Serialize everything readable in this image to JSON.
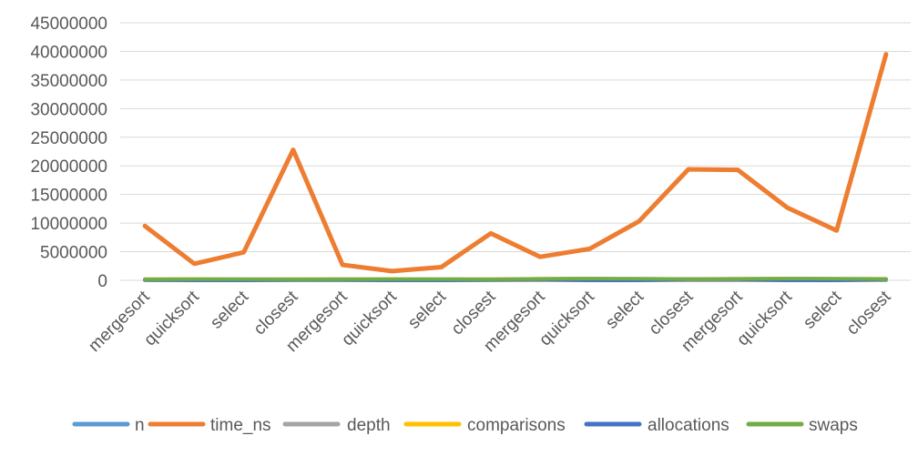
{
  "chart_data": {
    "type": "line",
    "title": "",
    "xlabel": "",
    "ylabel": "",
    "categories": [
      "mergesort",
      "quicksort",
      "select",
      "closest",
      "mergesort",
      "quicksort",
      "select",
      "closest",
      "mergesort",
      "quicksort",
      "select",
      "closest",
      "mergesort",
      "quicksort",
      "select",
      "closest"
    ],
    "ylim": [
      0,
      45000000
    ],
    "yticks": [
      0,
      5000000,
      10000000,
      15000000,
      20000000,
      25000000,
      30000000,
      35000000,
      40000000,
      45000000
    ],
    "ytick_labels": [
      "0",
      "5000000",
      "10000000",
      "15000000",
      "20000000",
      "25000000",
      "30000000",
      "35000000",
      "40000000",
      "45000000"
    ],
    "grid": true,
    "legend_position": "bottom",
    "series": [
      {
        "name": "n",
        "color": "#5b9bd5",
        "values": [
          100000,
          100000,
          100000,
          100000,
          100000,
          100000,
          100000,
          100000,
          200000,
          200000,
          200000,
          200000,
          200000,
          200000,
          200000,
          200000
        ]
      },
      {
        "name": "time_ns",
        "color": "#ed7d31",
        "values": [
          9500000,
          2900000,
          4900000,
          22800000,
          2700000,
          1600000,
          2300000,
          8200000,
          4100000,
          5500000,
          10300000,
          19400000,
          19300000,
          12700000,
          8700000,
          39500000
        ]
      },
      {
        "name": "depth",
        "color": "#a5a5a5",
        "values": [
          17,
          25,
          25,
          17,
          17,
          25,
          25,
          17,
          18,
          27,
          27,
          18,
          18,
          27,
          27,
          18
        ]
      },
      {
        "name": "comparisons",
        "color": "#ffc000",
        "values": [
          200000,
          220000,
          180000,
          200000,
          200000,
          220000,
          180000,
          200000,
          250000,
          260000,
          230000,
          240000,
          260000,
          270000,
          240000,
          250000
        ]
      },
      {
        "name": "allocations",
        "color": "#4472c4",
        "values": [
          100000,
          0,
          0,
          100000,
          100000,
          0,
          0,
          100000,
          200000,
          0,
          0,
          200000,
          200000,
          0,
          0,
          200000
        ]
      },
      {
        "name": "swaps",
        "color": "#70ad47",
        "values": [
          180000,
          200000,
          190000,
          170000,
          190000,
          210000,
          200000,
          180000,
          250000,
          300000,
          270000,
          230000,
          260000,
          310000,
          280000,
          240000
        ]
      }
    ]
  }
}
